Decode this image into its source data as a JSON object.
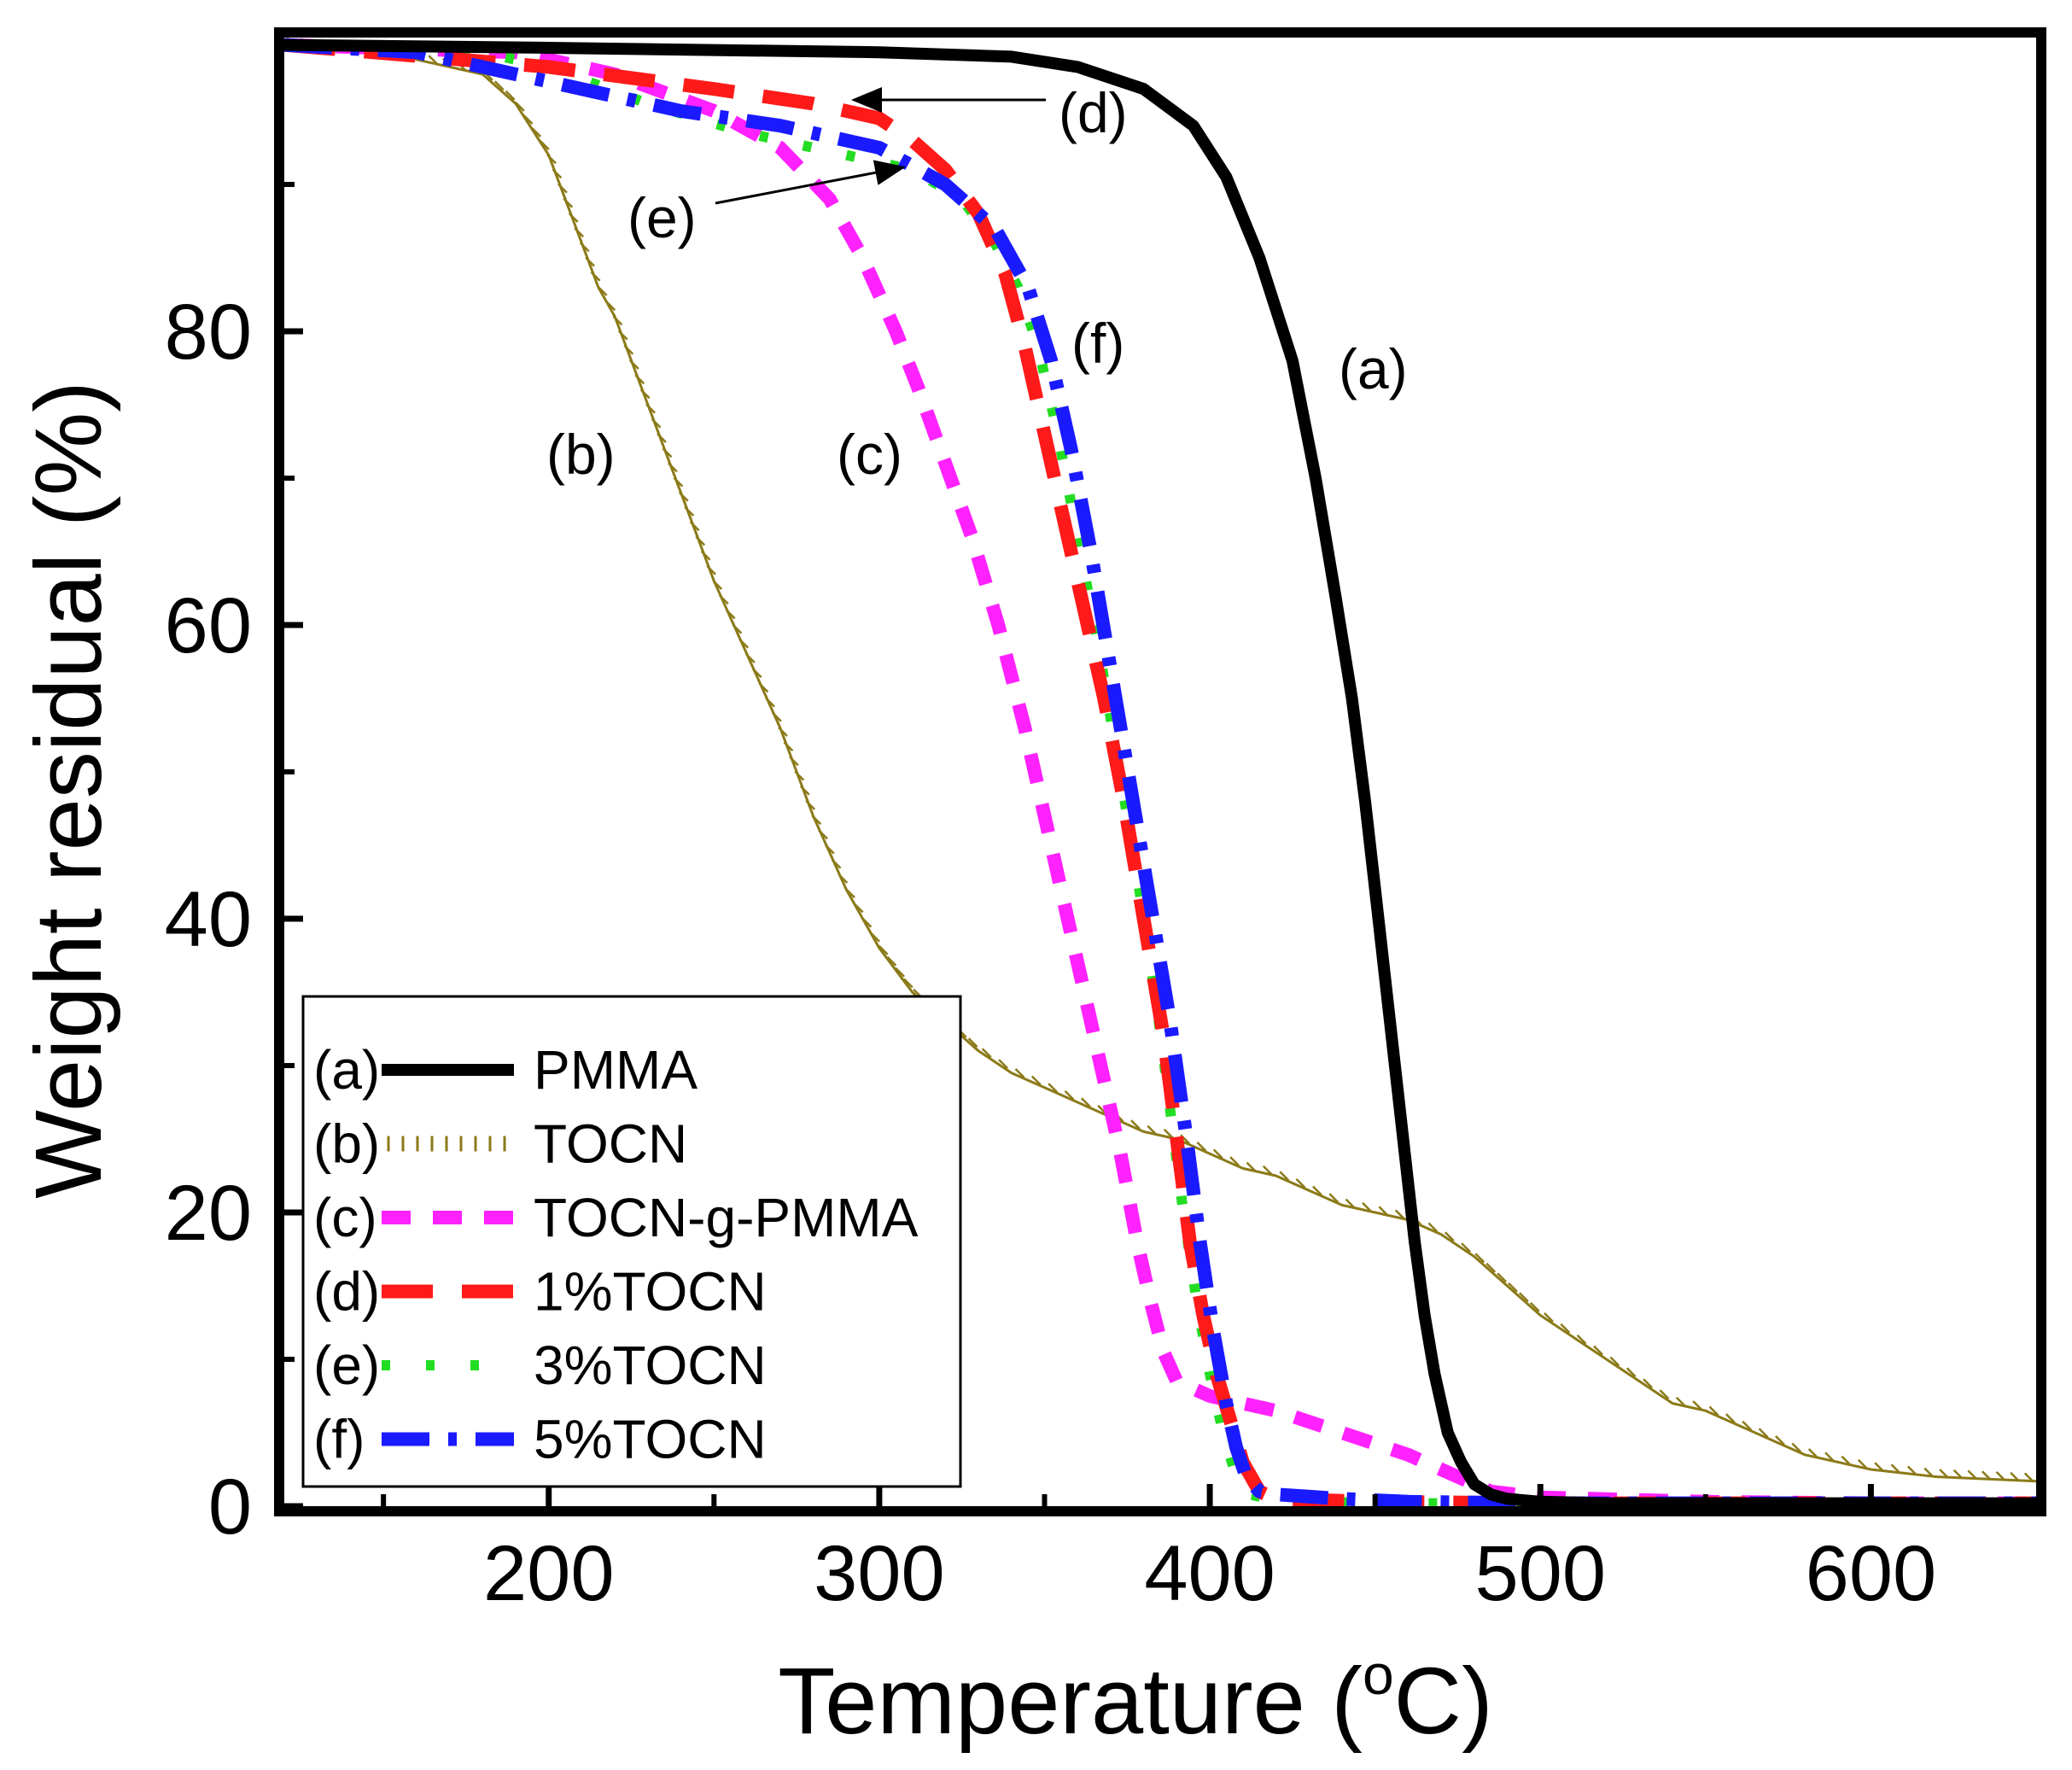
{
  "chart_data": {
    "type": "line",
    "title": "",
    "xlabel": "Temperature (",
    "xlabel_sup": "o",
    "xlabel_unit": "C)",
    "ylabel": "Weight residual (%)",
    "xlim": [
      120,
      650
    ],
    "ylim": [
      0,
      100
    ],
    "xticks": [
      200,
      300,
      400,
      500,
      600
    ],
    "yticks": [
      0,
      20,
      40,
      60,
      80
    ],
    "xtick_labels": [
      "200",
      "300",
      "400",
      "500",
      "600"
    ],
    "ytick_labels": [
      "0",
      "20",
      "40",
      "60",
      "80"
    ],
    "legend_position": "bottom-left",
    "series": [
      {
        "id": "a",
        "tag": "(a)",
        "name": "PMMA",
        "color": "#000000",
        "style": "solid",
        "x": [
          120,
          200,
          300,
          340,
          360,
          380,
          395,
          405,
          415,
          425,
          432,
          438,
          443,
          447,
          450,
          453,
          456,
          459,
          462,
          465,
          468,
          472,
          476,
          480,
          485,
          490,
          500,
          520,
          560,
          600,
          650
        ],
        "y": [
          99.5,
          99.3,
          99,
          98.7,
          98,
          96.5,
          94,
          90.5,
          85,
          78,
          70,
          62,
          55,
          48,
          42,
          36,
          30,
          24,
          18,
          13,
          9,
          5,
          3,
          1.5,
          0.8,
          0.5,
          0.3,
          0.2,
          0.2,
          0.2,
          0.2
        ]
      },
      {
        "id": "b",
        "tag": "(b)",
        "name": "TOCN",
        "color": "#8b7a18",
        "style": "hatch",
        "x": [
          120,
          150,
          180,
          190,
          200,
          205,
          210,
          215,
          220,
          225,
          230,
          235,
          240,
          245,
          250,
          260,
          270,
          280,
          290,
          300,
          310,
          320,
          330,
          340,
          350,
          360,
          370,
          380,
          390,
          400,
          410,
          420,
          430,
          440,
          450,
          460,
          470,
          480,
          490,
          500,
          510,
          520,
          530,
          540,
          550,
          560,
          570,
          580,
          590,
          600,
          620,
          650
        ],
        "y": [
          99.5,
          99,
          97.5,
          95.5,
          92,
          89,
          86,
          83,
          81,
          78,
          75,
          72,
          69,
          66,
          63,
          58,
          53,
          47,
          42,
          38,
          35,
          33,
          31,
          29.5,
          28.5,
          27.5,
          26.5,
          25.5,
          25,
          24,
          23,
          22.5,
          21.5,
          20.5,
          20,
          19.5,
          18.5,
          17,
          15,
          13,
          11.5,
          10,
          8.5,
          7,
          6.5,
          5.5,
          4.5,
          3.5,
          3,
          2.5,
          2,
          1.7
        ]
      },
      {
        "id": "c",
        "tag": "(c)",
        "name": "TOCN-g-PMMA",
        "color": "#ff22ff",
        "style": "dash",
        "x": [
          120,
          190,
          220,
          250,
          270,
          285,
          295,
          305,
          312,
          320,
          328,
          336,
          344,
          350,
          356,
          362,
          368,
          373,
          378,
          382,
          386,
          390,
          400,
          410,
          420,
          440,
          460,
          475,
          485,
          500,
          550,
          600,
          650
        ],
        "y": [
          99.5,
          99,
          97.5,
          95,
          92.5,
          89,
          85,
          80,
          76,
          71,
          66,
          60,
          53,
          47,
          41,
          35,
          29,
          24,
          18,
          14,
          10.5,
          8.5,
          7.5,
          7,
          6.5,
          5,
          3.5,
          2,
          1,
          0.6,
          0.3,
          0.2,
          0.2
        ]
      },
      {
        "id": "d",
        "tag": "(d)",
        "name": "1%TOCN",
        "color": "#ff1a1a",
        "style": "longdash",
        "x": [
          120,
          200,
          250,
          280,
          300,
          310,
          320,
          330,
          338,
          344,
          350,
          356,
          362,
          368,
          374,
          380,
          386,
          390,
          394,
          398,
          402,
          406,
          410,
          415,
          420,
          450,
          500,
          650
        ],
        "y": [
          99.5,
          98,
          96.5,
          95.5,
          94.5,
          93,
          91,
          88,
          84,
          79,
          73,
          67,
          61,
          55,
          48,
          40,
          32,
          25,
          18,
          13,
          9,
          6,
          3,
          1,
          0.5,
          0.3,
          0.2,
          0.2
        ]
      },
      {
        "id": "e",
        "tag": "(e)",
        "name": "3%TOCN",
        "color": "#22dd22",
        "style": "dot",
        "x": [
          120,
          180,
          200,
          230,
          260,
          290,
          310,
          325,
          335,
          342,
          348,
          354,
          360,
          366,
          372,
          378,
          384,
          388,
          392,
          396,
          400,
          404,
          408,
          412,
          420,
          450,
          500,
          650
        ],
        "y": [
          99.5,
          99,
          98,
          95.5,
          93.5,
          92,
          91,
          89,
          86,
          83,
          79,
          73,
          66,
          59,
          51,
          43,
          34,
          27,
          20,
          14,
          9,
          5,
          2,
          0.8,
          0.4,
          0.2,
          0.2,
          0.2
        ]
      },
      {
        "id": "f",
        "tag": "(f)",
        "name": "5%TOCN",
        "color": "#1a1aff",
        "style": "dashdot",
        "x": [
          120,
          160,
          200,
          240,
          270,
          300,
          320,
          335,
          345,
          352,
          358,
          364,
          370,
          376,
          382,
          388,
          393,
          397,
          401,
          405,
          408,
          411,
          415,
          420,
          440,
          460,
          500,
          650
        ],
        "y": [
          99.5,
          99,
          97,
          95,
          94,
          92.5,
          90,
          87,
          83,
          78,
          72,
          65,
          57,
          49,
          41,
          33,
          25,
          18,
          12,
          7,
          4,
          2,
          1,
          0.8,
          0.5,
          0.3,
          0.2,
          0.2
        ]
      }
    ],
    "annotations": [
      {
        "id": "a",
        "text": "(a)"
      },
      {
        "id": "b",
        "text": "(b)"
      },
      {
        "id": "c",
        "text": "(c)"
      },
      {
        "id": "d",
        "text": "(d)"
      },
      {
        "id": "e",
        "text": "(e)"
      },
      {
        "id": "f",
        "text": "(f)"
      }
    ]
  }
}
